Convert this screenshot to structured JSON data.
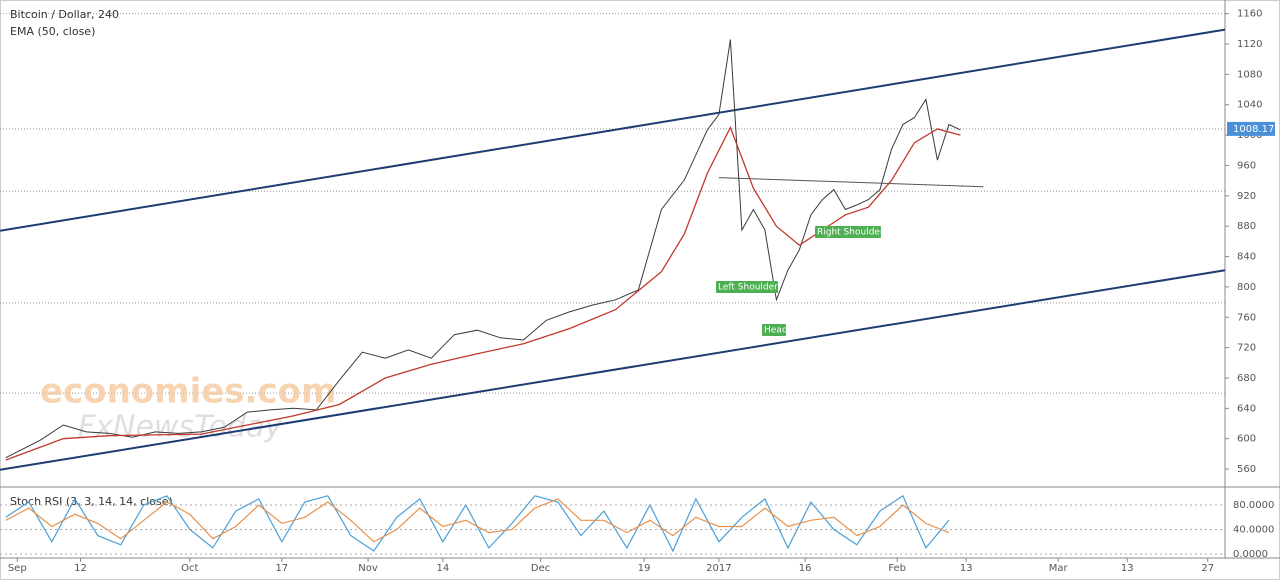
{
  "chart_data": [
    {
      "type": "line",
      "title": "Bitcoin / Dollar, 240",
      "subtitle": "EMA (50, close)",
      "xlim": [
        -3,
        210
      ],
      "xticks": [
        {
          "value": 0,
          "label": "Sep"
        },
        {
          "value": 11,
          "label": "12"
        },
        {
          "value": 30,
          "label": "Oct"
        },
        {
          "value": 46,
          "label": "17"
        },
        {
          "value": 61,
          "label": "Nov"
        },
        {
          "value": 74,
          "label": "14"
        },
        {
          "value": 91,
          "label": "Dec"
        },
        {
          "value": 109,
          "label": "19"
        },
        {
          "value": 122,
          "label": "2017"
        },
        {
          "value": 137,
          "label": "16"
        },
        {
          "value": 153,
          "label": "Feb"
        },
        {
          "value": 165,
          "label": "13"
        },
        {
          "value": 181,
          "label": "Mar"
        },
        {
          "value": 193,
          "label": "13"
        },
        {
          "value": 207,
          "label": "27"
        }
      ],
      "ylim": [
        539,
        1178
      ],
      "yticks": [
        560,
        600,
        640,
        680,
        720,
        760,
        800,
        840,
        880,
        920,
        960,
        1000,
        1040,
        1080,
        1120,
        1160
      ],
      "series": [
        {
          "color": "#3a3a3a",
          "x": [
            -2,
            4,
            8,
            12,
            16,
            20,
            24,
            28,
            32,
            36,
            40,
            44,
            48,
            52,
            56,
            60,
            64,
            68,
            72,
            76,
            80,
            84,
            88,
            92,
            96,
            100,
            104,
            108,
            112,
            116,
            120,
            122,
            124,
            126,
            128,
            130,
            132,
            134,
            136,
            138,
            140,
            142,
            144,
            146,
            148,
            150,
            152,
            154,
            156,
            158,
            160,
            162,
            164
          ],
          "values": [
            575,
            598,
            618,
            609,
            607,
            602,
            609,
            607,
            609,
            615,
            635,
            638,
            640,
            638,
            677,
            714,
            706,
            717,
            706,
            737,
            743,
            733,
            730,
            756,
            767,
            776,
            783,
            796,
            902,
            941,
            1007,
            1027,
            1126,
            875,
            902,
            875,
            783,
            822,
            849,
            895,
            915,
            928,
            902,
            908,
            915,
            928,
            981,
            1014,
            1023,
            1047,
            967,
            1014,
            1007
          ]
        },
        {
          "color": "#c0392b",
          "x": [
            -2,
            8,
            16,
            24,
            32,
            40,
            48,
            56,
            64,
            72,
            80,
            88,
            96,
            104,
            112,
            116,
            120,
            124,
            128,
            132,
            136,
            140,
            144,
            148,
            152,
            156,
            160,
            164
          ],
          "values": [
            572,
            600,
            604,
            605,
            606,
            618,
            630,
            645,
            680,
            698,
            712,
            725,
            745,
            770,
            820,
            870,
            950,
            1010,
            930,
            880,
            855,
            875,
            895,
            905,
            940,
            990,
            1008,
            1000
          ]
        }
      ],
      "trend_lines": [
        {
          "color": "#1f3b73",
          "x": [
            -3,
            210
          ],
          "y": [
            874,
            1139
          ]
        },
        {
          "color": "#1f3b73",
          "x": [
            -3,
            210
          ],
          "y": [
            559,
            822
          ]
        },
        {
          "color": "#555555",
          "x": [
            122,
            168
          ],
          "y": [
            944,
            932
          ]
        }
      ],
      "levels": [
        1160,
        1008.17,
        926,
        779,
        660
      ],
      "last_price": 1008.17,
      "annotations": [
        "Left Shoulder",
        "Head",
        "Right Shoulder"
      ],
      "watermarks": [
        "economies.com",
        "FxNewsToday"
      ]
    },
    {
      "type": "line",
      "title": "Stoch RSI (3, 3, 14, 14, close)",
      "x": [
        -2,
        2,
        6,
        10,
        14,
        18,
        22,
        26,
        30,
        34,
        38,
        42,
        46,
        50,
        54,
        58,
        62,
        66,
        70,
        74,
        78,
        82,
        86,
        90,
        94,
        98,
        102,
        106,
        110,
        114,
        118,
        122,
        126,
        130,
        134,
        138,
        142,
        146,
        150,
        154,
        158,
        162
      ],
      "ylim": [
        -6.5,
        107.8
      ],
      "yticks": [
        {
          "value": 80,
          "label": "80.0000"
        },
        {
          "value": 40,
          "label": "40.0000"
        },
        {
          "value": 0,
          "label": "0.0000"
        }
      ],
      "series": [
        {
          "color": "#4a9fd8",
          "values": [
            60,
            85,
            20,
            90,
            30,
            15,
            80,
            95,
            40,
            10,
            70,
            90,
            20,
            85,
            95,
            30,
            5,
            60,
            90,
            20,
            80,
            10,
            50,
            95,
            85,
            30,
            70,
            10,
            80,
            5,
            90,
            20,
            60,
            90,
            10,
            85,
            40,
            15,
            70,
            95,
            10,
            55
          ]
        },
        {
          "color": "#e8914a",
          "values": [
            55,
            75,
            45,
            65,
            50,
            25,
            55,
            85,
            65,
            25,
            45,
            80,
            50,
            60,
            85,
            55,
            20,
            40,
            75,
            45,
            55,
            35,
            40,
            75,
            90,
            55,
            55,
            35,
            55,
            30,
            60,
            45,
            45,
            75,
            45,
            55,
            60,
            30,
            45,
            80,
            50,
            35
          ]
        }
      ]
    }
  ]
}
